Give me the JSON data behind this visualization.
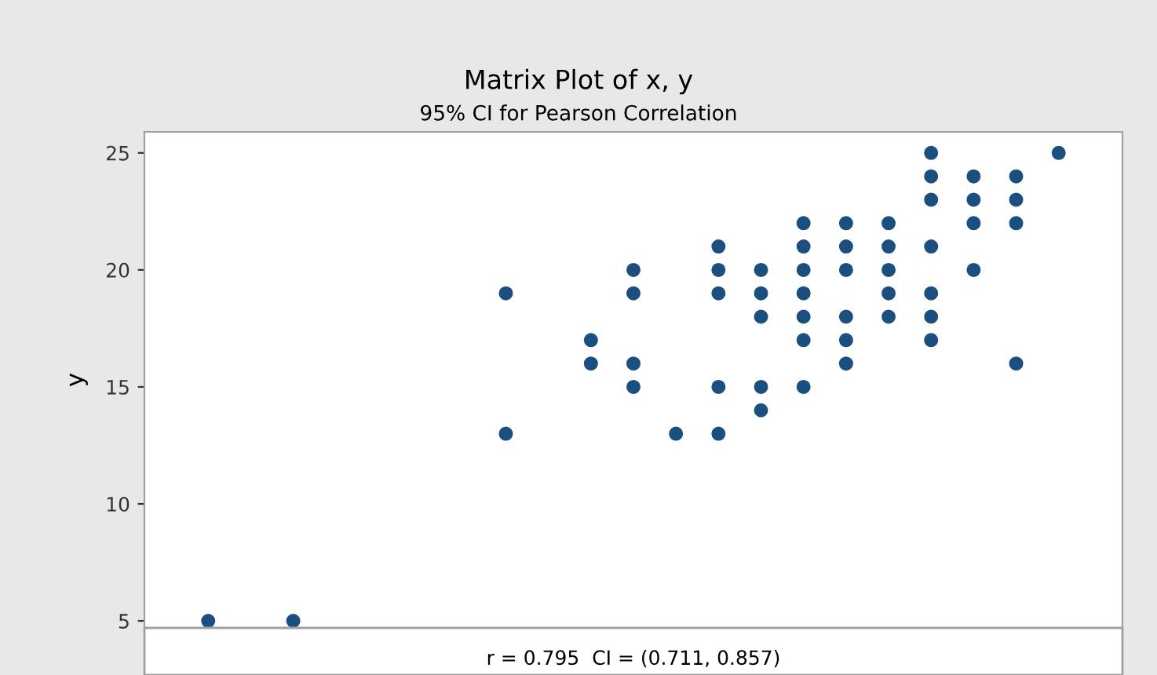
{
  "chart_data": {
    "type": "scatter",
    "title": "Matrix Plot of x, y",
    "subtitle": "95% CI for Pearson Correlation",
    "ylabel": "y",
    "categories": [
      null,
      null,
      null,
      null,
      null,
      null,
      null,
      null,
      null,
      null,
      null,
      null,
      null,
      null,
      null,
      null,
      null,
      null,
      null,
      null,
      null,
      null,
      null
    ],
    "series": [
      {
        "color": "#1b4f80",
        "values": [
          null,
          5,
          null,
          5,
          null,
          null,
          null,
          null,
          19,
          null,
          17,
          20,
          13,
          21,
          20,
          22,
          22,
          22,
          25,
          24,
          24,
          25,
          null
        ]
      },
      {
        "color": "#1b4f80",
        "values": [
          null,
          null,
          null,
          null,
          null,
          null,
          null,
          null,
          13,
          null,
          16,
          19,
          null,
          20,
          19,
          21,
          21,
          21,
          24,
          23,
          23,
          null,
          null
        ]
      },
      {
        "color": "#1b4f80",
        "values": [
          null,
          null,
          null,
          null,
          null,
          null,
          null,
          null,
          null,
          null,
          null,
          16,
          null,
          19,
          18,
          20,
          20,
          20,
          23,
          22,
          22,
          null,
          null
        ]
      },
      {
        "color": "#1b4f80",
        "values": [
          null,
          null,
          null,
          null,
          null,
          null,
          null,
          null,
          null,
          null,
          null,
          15,
          null,
          15,
          15,
          19,
          18,
          19,
          21,
          20,
          16,
          null,
          null
        ]
      },
      {
        "color": "#1b4f80",
        "values": [
          null,
          null,
          null,
          null,
          null,
          null,
          null,
          null,
          null,
          null,
          null,
          null,
          null,
          13,
          14,
          18,
          17,
          18,
          19,
          null,
          null,
          null,
          null
        ]
      },
      {
        "color": "#1b4f80",
        "values": [
          null,
          null,
          null,
          null,
          null,
          null,
          null,
          null,
          null,
          null,
          null,
          null,
          null,
          null,
          null,
          17,
          16,
          null,
          18,
          null,
          null,
          null,
          null
        ]
      },
      {
        "color": "#1b4f80",
        "values": [
          null,
          null,
          null,
          null,
          null,
          null,
          null,
          null,
          null,
          null,
          null,
          null,
          null,
          null,
          null,
          15,
          null,
          null,
          17,
          null,
          null,
          null,
          null
        ]
      }
    ],
    "ylim": [
      4.7,
      25.9
    ],
    "yticks": [
      5,
      10,
      15,
      20,
      25
    ],
    "tick_labels": "y",
    "marker": "circle",
    "grid": false,
    "annotations": [
      "r = 0.795  CI = (0.711, 0.857)"
    ]
  }
}
